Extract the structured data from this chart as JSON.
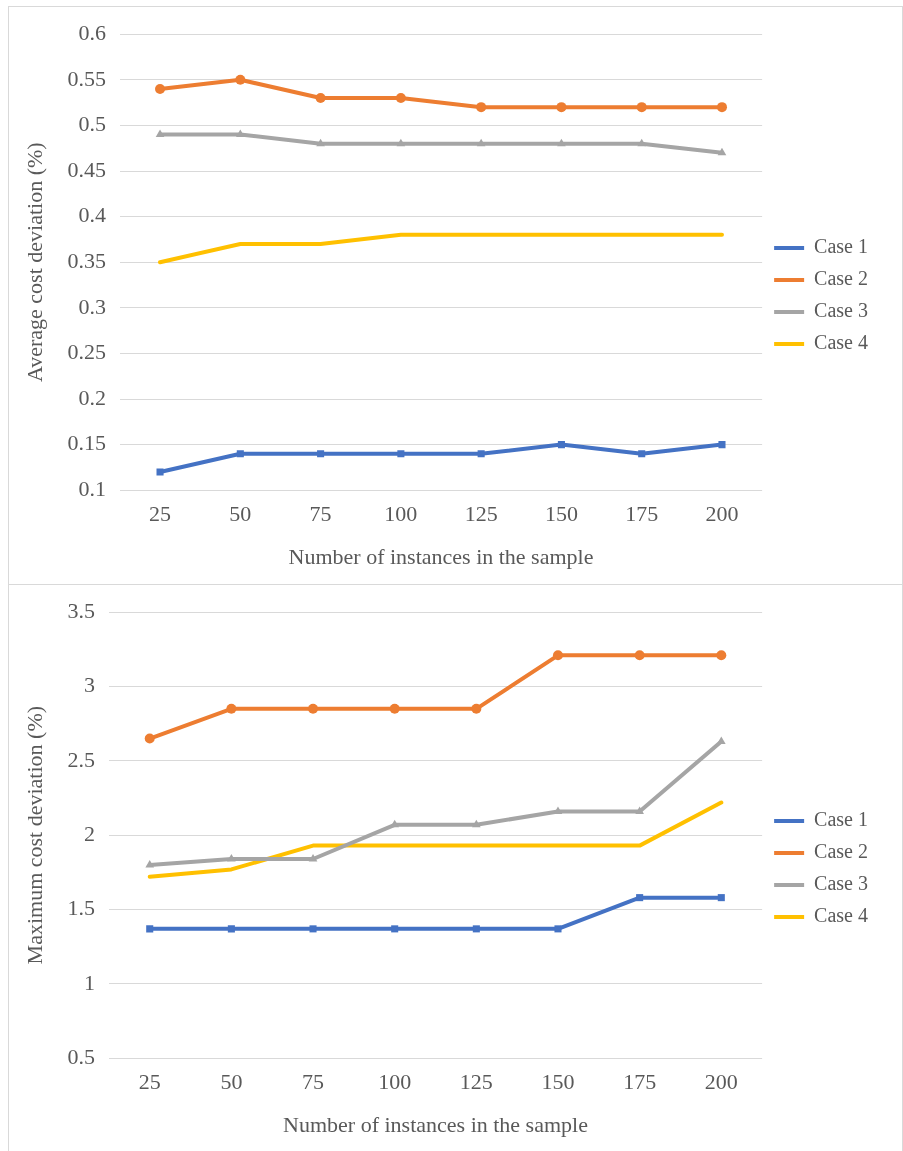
{
  "chart_data": [
    {
      "type": "line",
      "xlabel": "Number of instances in the sample",
      "ylabel": "Average cost deviation (%)",
      "categories": [
        "25",
        "50",
        "75",
        "100",
        "125",
        "150",
        "175",
        "200"
      ],
      "ylim": [
        0.1,
        0.6
      ],
      "yticks": [
        0.1,
        0.15,
        0.2,
        0.25,
        0.3,
        0.35,
        0.4,
        0.45,
        0.5,
        0.55,
        0.6
      ],
      "grid": "y",
      "legend": "right",
      "line_style": "solid",
      "series": [
        {
          "name": "Case 1",
          "color": "#4472c4",
          "marker": "square",
          "values": [
            0.12,
            0.14,
            0.14,
            0.14,
            0.14,
            0.15,
            0.14,
            0.15
          ]
        },
        {
          "name": "Case 2",
          "color": "#ed7d31",
          "marker": "circle",
          "values": [
            0.54,
            0.55,
            0.53,
            0.53,
            0.52,
            0.52,
            0.52,
            0.52
          ]
        },
        {
          "name": "Case 3",
          "color": "#a5a5a5",
          "marker": "triangle",
          "values": [
            0.49,
            0.49,
            0.48,
            0.48,
            0.48,
            0.48,
            0.48,
            0.47
          ]
        },
        {
          "name": "Case 4",
          "color": "#ffc000",
          "marker": "none",
          "values": [
            0.35,
            0.37,
            0.37,
            0.38,
            0.38,
            0.38,
            0.38,
            0.38
          ]
        }
      ]
    },
    {
      "type": "line",
      "xlabel": "Number of instances in the sample",
      "ylabel": "Maximum cost deviation (%)",
      "categories": [
        "25",
        "50",
        "75",
        "100",
        "125",
        "150",
        "175",
        "200"
      ],
      "ylim": [
        0.5,
        3.5
      ],
      "yticks": [
        0.5,
        1,
        1.5,
        2,
        2.5,
        3,
        3.5
      ],
      "grid": "y",
      "legend": "right",
      "line_style": "solid",
      "series": [
        {
          "name": "Case 1",
          "color": "#4472c4",
          "marker": "square",
          "values": [
            1.37,
            1.37,
            1.37,
            1.37,
            1.37,
            1.37,
            1.58,
            1.58
          ]
        },
        {
          "name": "Case 2",
          "color": "#ed7d31",
          "marker": "circle",
          "values": [
            2.65,
            2.85,
            2.85,
            2.85,
            2.85,
            3.21,
            3.21,
            3.21
          ]
        },
        {
          "name": "Case 3",
          "color": "#a5a5a5",
          "marker": "triangle",
          "values": [
            1.8,
            1.84,
            1.84,
            2.07,
            2.07,
            2.16,
            2.16,
            2.63
          ]
        },
        {
          "name": "Case 4",
          "color": "#ffc000",
          "marker": "none",
          "values": [
            1.72,
            1.77,
            1.93,
            1.93,
            1.93,
            1.93,
            1.93,
            2.22
          ]
        }
      ]
    }
  ]
}
